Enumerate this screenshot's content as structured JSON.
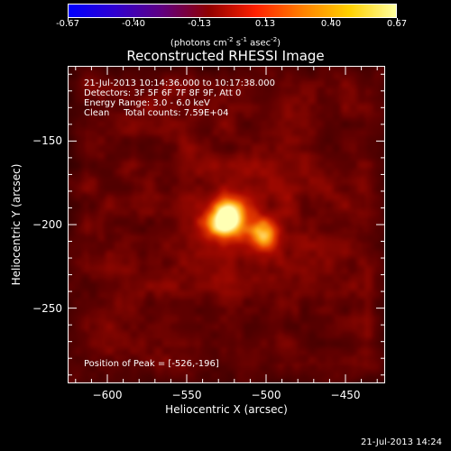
{
  "colorbar": {
    "ticks": [
      "-0.67",
      "-0.40",
      "-0.13",
      "0.13",
      "0.40",
      "0.67"
    ],
    "units_main": "(photons cm",
    "units_exp1": "-2",
    "units_mid": " s",
    "units_exp2": "-1",
    "units_mid2": " asec",
    "units_exp3": "-2",
    "units_end": ")"
  },
  "title": "Reconstructed RHESSI Image",
  "info": {
    "line1": "21-Jul-2013 10:14:36.000 to 10:17:38.000",
    "line2": "Detectors: 3F 5F 6F 7F 8F 9F, Att 0",
    "line3": "Energy Range: 3.0 - 6.0 keV",
    "line4": "Clean     Total counts: 7.59E+04",
    "peak": "Position of Peak = [-526,-196]"
  },
  "footer": "21-Jul-2013 14:24",
  "chart_data": {
    "type": "heatmap",
    "title": "Reconstructed RHESSI Image",
    "xlabel": "Heliocentric X (arcsec)",
    "ylabel": "Heliocentric Y (arcsec)",
    "xlim": [
      -625,
      -425
    ],
    "ylim": [
      -295,
      -105
    ],
    "x_ticks": [
      -600,
      -550,
      -500,
      -450
    ],
    "x_tick_labels": [
      "−600",
      "−550",
      "−500",
      "−450"
    ],
    "y_ticks": [
      -150,
      -200,
      -250
    ],
    "y_tick_labels": [
      "−150",
      "−200",
      "−250"
    ],
    "colorbar_range": [
      -0.67,
      0.67
    ],
    "colormap": [
      "#0000ff",
      "#3000d0",
      "#600080",
      "#900000",
      "#ff2000",
      "#ff8000",
      "#ffd000",
      "#ffffa0"
    ],
    "sources": [
      {
        "x": -526,
        "y": -196,
        "value": 0.67
      },
      {
        "x": -503,
        "y": -205,
        "value": 0.45
      }
    ],
    "peak": {
      "x": -526,
      "y": -196
    }
  }
}
